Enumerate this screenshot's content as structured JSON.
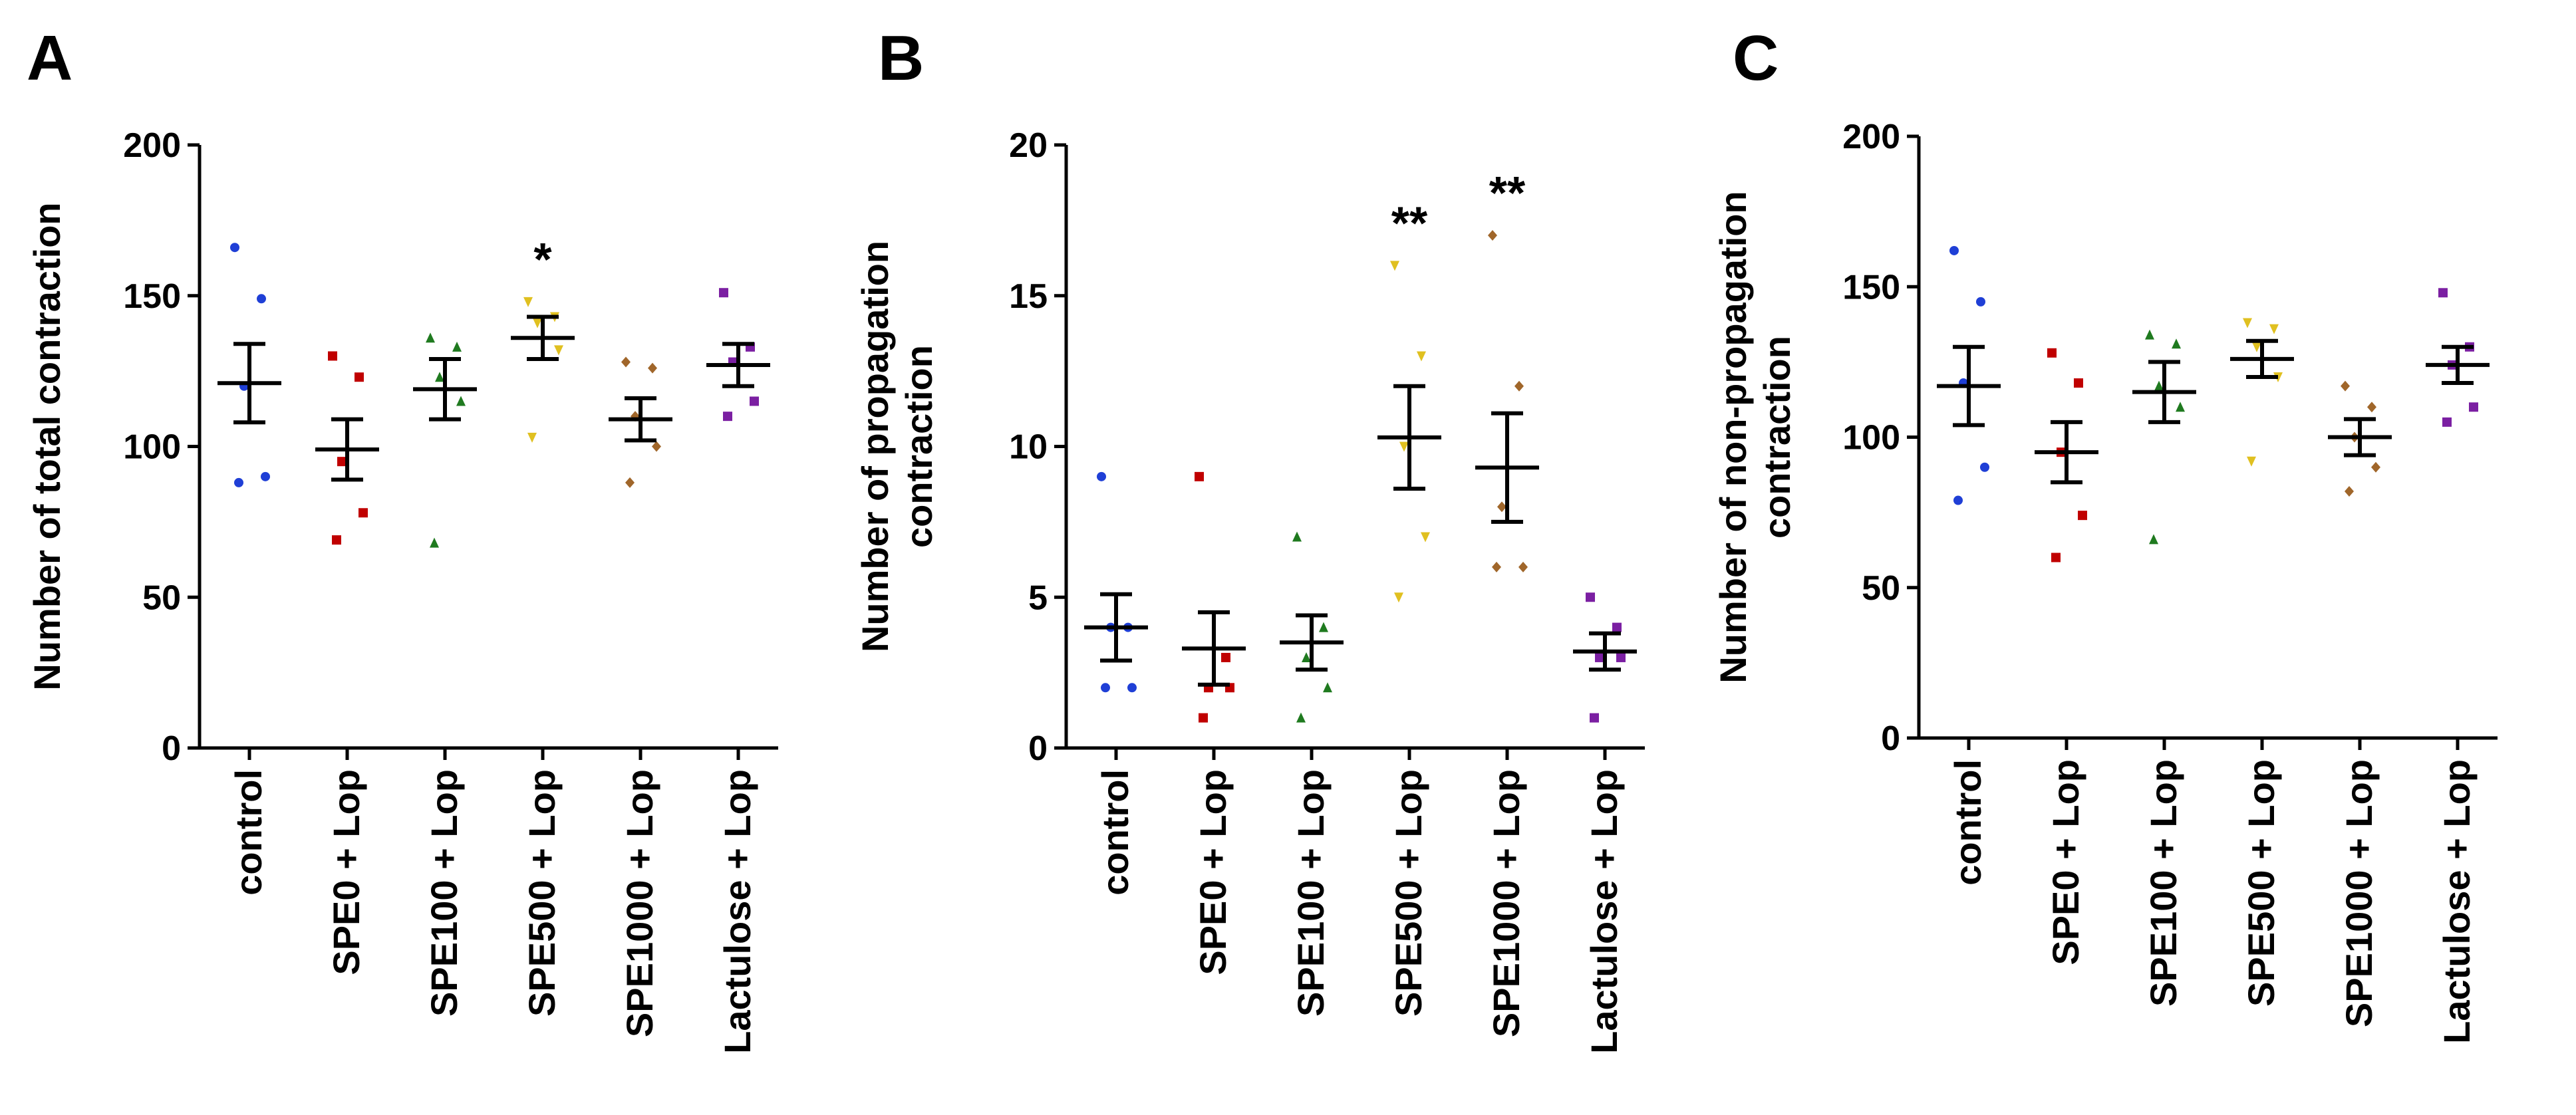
{
  "colors": {
    "axis": "#000000",
    "groups": [
      "#1f3fd6",
      "#c00000",
      "#1f7a1f",
      "#e0c020",
      "#a0662a",
      "#7b1fa2"
    ]
  },
  "chart_data": [
    {
      "panel": "A",
      "type": "scatter",
      "title": "",
      "xlabel": "",
      "ylabel": "Number of total contraction",
      "ylim": [
        0,
        200
      ],
      "yticks": [
        0,
        50,
        100,
        150,
        200
      ],
      "categories": [
        "control",
        "SPE0 + Lop",
        "SPE100 + Lop",
        "SPE500 + Lop",
        "SPE1000 + Lop",
        "Lactulose + Lop"
      ],
      "points": [
        [
          166,
          149,
          120,
          90,
          88
        ],
        [
          130,
          123,
          95,
          78,
          69
        ],
        [
          136,
          133,
          123,
          115,
          68
        ],
        [
          148,
          143,
          141,
          132,
          103
        ],
        [
          128,
          126,
          110,
          100,
          88
        ],
        [
          151,
          133,
          128,
          115,
          110
        ]
      ],
      "mean": [
        121,
        99,
        119,
        136,
        109,
        127
      ],
      "sem": [
        13,
        10,
        10,
        7,
        7,
        7
      ],
      "annotations": [
        "",
        "",
        "",
        "*",
        "",
        ""
      ]
    },
    {
      "panel": "B",
      "type": "scatter",
      "title": "",
      "xlabel": "",
      "ylabel": "Number of propagation contraction",
      "ylim": [
        0,
        20
      ],
      "yticks": [
        0,
        5,
        10,
        15,
        20
      ],
      "categories": [
        "control",
        "SPE0 + Lop",
        "SPE100 + Lop",
        "SPE500 + Lop",
        "SPE1000 + Lop",
        "Lactulose + Lop"
      ],
      "points": [
        [
          9,
          4,
          4,
          2,
          2
        ],
        [
          9,
          3,
          2,
          2,
          1
        ],
        [
          7,
          4,
          3,
          2,
          1
        ],
        [
          16,
          13,
          10,
          7,
          5
        ],
        [
          17,
          12,
          8,
          6,
          6
        ],
        [
          5,
          4,
          3,
          3,
          1
        ]
      ],
      "mean": [
        4,
        3.3,
        3.5,
        10.3,
        9.3,
        3.2
      ],
      "sem": [
        1.1,
        1.2,
        0.9,
        1.7,
        1.8,
        0.6
      ],
      "annotations": [
        "",
        "",
        "",
        "**",
        "**",
        ""
      ]
    },
    {
      "panel": "C",
      "type": "scatter",
      "title": "",
      "xlabel": "",
      "ylabel": "Number of non-propagation contraction",
      "ylim": [
        0,
        200
      ],
      "yticks": [
        0,
        50,
        100,
        150,
        200
      ],
      "categories": [
        "control",
        "SPE0 + Lop",
        "SPE100 + Lop",
        "SPE500 + Lop",
        "SPE1000 + Lop",
        "Lactulose + Lop"
      ],
      "points": [
        [
          162,
          145,
          118,
          90,
          79
        ],
        [
          128,
          118,
          95,
          74,
          60
        ],
        [
          134,
          131,
          117,
          110,
          66
        ],
        [
          138,
          136,
          130,
          120,
          92
        ],
        [
          117,
          110,
          100,
          90,
          82
        ],
        [
          148,
          130,
          124,
          110,
          105
        ]
      ],
      "mean": [
        117,
        95,
        115,
        126,
        100,
        124
      ],
      "sem": [
        13,
        10,
        10,
        6,
        6,
        6
      ],
      "annotations": [
        "",
        "",
        "",
        "",
        "",
        ""
      ]
    }
  ]
}
